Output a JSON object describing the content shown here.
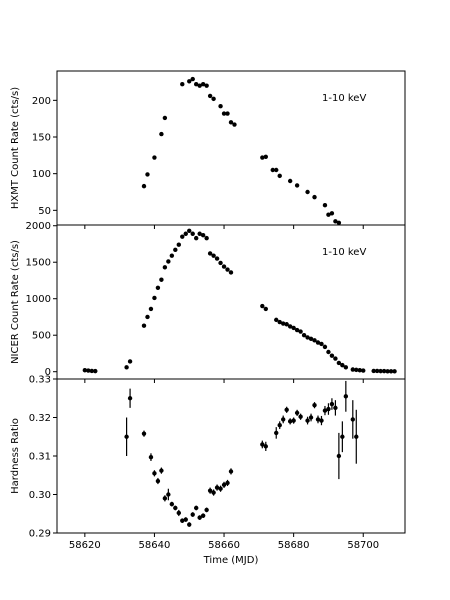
{
  "chart_data": [
    {
      "type": "scatter",
      "panel": "top",
      "ylabel": "HXMT Count Rate (cts/s)",
      "annotation": "1-10 keV",
      "xlim": [
        58612,
        58712
      ],
      "ylim": [
        30,
        240
      ],
      "yticks": [
        50,
        100,
        150,
        200
      ],
      "ytick_labels": [
        "50",
        "100",
        "150",
        "200"
      ],
      "points": [
        {
          "x": 58637.0,
          "y": 83
        },
        {
          "x": 58638.0,
          "y": 99
        },
        {
          "x": 58640.0,
          "y": 122
        },
        {
          "x": 58642.0,
          "y": 154
        },
        {
          "x": 58643.0,
          "y": 176
        },
        {
          "x": 58648.0,
          "y": 222
        },
        {
          "x": 58650.0,
          "y": 226
        },
        {
          "x": 58651.0,
          "y": 229
        },
        {
          "x": 58652.0,
          "y": 222
        },
        {
          "x": 58653.0,
          "y": 220
        },
        {
          "x": 58654.0,
          "y": 222
        },
        {
          "x": 58655.0,
          "y": 220
        },
        {
          "x": 58656.0,
          "y": 206
        },
        {
          "x": 58657.0,
          "y": 202
        },
        {
          "x": 58659.0,
          "y": 192
        },
        {
          "x": 58660.0,
          "y": 182
        },
        {
          "x": 58661.0,
          "y": 182
        },
        {
          "x": 58662.0,
          "y": 170
        },
        {
          "x": 58663.0,
          "y": 167
        },
        {
          "x": 58671.0,
          "y": 122
        },
        {
          "x": 58672.0,
          "y": 123
        },
        {
          "x": 58674.0,
          "y": 105
        },
        {
          "x": 58675.0,
          "y": 105
        },
        {
          "x": 58676.0,
          "y": 97
        },
        {
          "x": 58679.0,
          "y": 90
        },
        {
          "x": 58681.0,
          "y": 84
        },
        {
          "x": 58684.0,
          "y": 75
        },
        {
          "x": 58686.0,
          "y": 68
        },
        {
          "x": 58689.0,
          "y": 57
        },
        {
          "x": 58690.0,
          "y": 44
        },
        {
          "x": 58691.0,
          "y": 46
        },
        {
          "x": 58692.0,
          "y": 35
        },
        {
          "x": 58693.0,
          "y": 33
        }
      ]
    },
    {
      "type": "scatter",
      "panel": "middle",
      "ylabel": "NICER Count Rate (cts/s)",
      "annotation": "1-10 keV",
      "xlim": [
        58612,
        58712
      ],
      "ylim": [
        -100,
        2010
      ],
      "yticks": [
        0,
        500,
        1000,
        1500,
        2000
      ],
      "ytick_labels": [
        "0",
        "500",
        "1000",
        "1500",
        "2000"
      ],
      "points": [
        {
          "x": 58620.0,
          "y": 20
        },
        {
          "x": 58621.0,
          "y": 15
        },
        {
          "x": 58622.0,
          "y": 10
        },
        {
          "x": 58623.0,
          "y": 8
        },
        {
          "x": 58632.0,
          "y": 60
        },
        {
          "x": 58633.0,
          "y": 140
        },
        {
          "x": 58637.0,
          "y": 630
        },
        {
          "x": 58638.0,
          "y": 750
        },
        {
          "x": 58639.0,
          "y": 860
        },
        {
          "x": 58640.0,
          "y": 1010
        },
        {
          "x": 58641.0,
          "y": 1150
        },
        {
          "x": 58642.0,
          "y": 1260
        },
        {
          "x": 58643.0,
          "y": 1430
        },
        {
          "x": 58644.0,
          "y": 1510
        },
        {
          "x": 58645.0,
          "y": 1590
        },
        {
          "x": 58646.0,
          "y": 1670
        },
        {
          "x": 58647.0,
          "y": 1740
        },
        {
          "x": 58648.0,
          "y": 1850
        },
        {
          "x": 58649.0,
          "y": 1890
        },
        {
          "x": 58650.0,
          "y": 1930
        },
        {
          "x": 58651.0,
          "y": 1890
        },
        {
          "x": 58652.0,
          "y": 1830
        },
        {
          "x": 58653.0,
          "y": 1890
        },
        {
          "x": 58654.0,
          "y": 1870
        },
        {
          "x": 58655.0,
          "y": 1830
        },
        {
          "x": 58656.0,
          "y": 1620
        },
        {
          "x": 58657.0,
          "y": 1590
        },
        {
          "x": 58658.0,
          "y": 1550
        },
        {
          "x": 58659.0,
          "y": 1490
        },
        {
          "x": 58660.0,
          "y": 1440
        },
        {
          "x": 58661.0,
          "y": 1400
        },
        {
          "x": 58662.0,
          "y": 1360
        },
        {
          "x": 58671.0,
          "y": 900
        },
        {
          "x": 58672.0,
          "y": 860
        },
        {
          "x": 58675.0,
          "y": 710
        },
        {
          "x": 58676.0,
          "y": 680
        },
        {
          "x": 58677.0,
          "y": 660
        },
        {
          "x": 58678.0,
          "y": 650
        },
        {
          "x": 58679.0,
          "y": 620
        },
        {
          "x": 58680.0,
          "y": 600
        },
        {
          "x": 58681.0,
          "y": 570
        },
        {
          "x": 58682.0,
          "y": 550
        },
        {
          "x": 58683.0,
          "y": 500
        },
        {
          "x": 58684.0,
          "y": 470
        },
        {
          "x": 58685.0,
          "y": 450
        },
        {
          "x": 58686.0,
          "y": 430
        },
        {
          "x": 58687.0,
          "y": 400
        },
        {
          "x": 58688.0,
          "y": 380
        },
        {
          "x": 58689.0,
          "y": 340
        },
        {
          "x": 58690.0,
          "y": 270
        },
        {
          "x": 58691.0,
          "y": 220
        },
        {
          "x": 58692.0,
          "y": 180
        },
        {
          "x": 58693.0,
          "y": 120
        },
        {
          "x": 58694.0,
          "y": 90
        },
        {
          "x": 58695.0,
          "y": 60
        },
        {
          "x": 58697.0,
          "y": 30
        },
        {
          "x": 58698.0,
          "y": 25
        },
        {
          "x": 58699.0,
          "y": 20
        },
        {
          "x": 58700.0,
          "y": 15
        },
        {
          "x": 58703.0,
          "y": 10
        },
        {
          "x": 58704.0,
          "y": 10
        },
        {
          "x": 58705.0,
          "y": 8
        },
        {
          "x": 58706.0,
          "y": 8
        },
        {
          "x": 58707.0,
          "y": 6
        },
        {
          "x": 58708.0,
          "y": 5
        },
        {
          "x": 58709.0,
          "y": 5
        }
      ]
    },
    {
      "type": "scatter",
      "panel": "bottom",
      "ylabel": "Hardness Ratio",
      "xlabel": "Time (MJD)",
      "xlim": [
        58612,
        58712
      ],
      "xticks": [
        58620,
        58640,
        58660,
        58680,
        58700
      ],
      "xtick_labels": [
        "58620",
        "58640",
        "58660",
        "58680",
        "58700"
      ],
      "ylim": [
        0.29,
        0.33
      ],
      "yticks": [
        0.29,
        0.3,
        0.31,
        0.32,
        0.33
      ],
      "ytick_labels": [
        "0.29",
        "0.30",
        "0.31",
        "0.32",
        "0.33"
      ],
      "points": [
        {
          "x": 58632.0,
          "y": 0.315,
          "err": 0.005
        },
        {
          "x": 58633.0,
          "y": 0.325,
          "err": 0.0025
        },
        {
          "x": 58637.0,
          "y": 0.3158,
          "err": 0.0008
        },
        {
          "x": 58639.0,
          "y": 0.3097,
          "err": 0.001
        },
        {
          "x": 58640.0,
          "y": 0.3055,
          "err": 0.0008
        },
        {
          "x": 58641.0,
          "y": 0.3035,
          "err": 0.0008
        },
        {
          "x": 58642.0,
          "y": 0.3062,
          "err": 0.0008
        },
        {
          "x": 58643.0,
          "y": 0.299,
          "err": 0.0008
        },
        {
          "x": 58644.0,
          "y": 0.3,
          "err": 0.0015
        },
        {
          "x": 58645.0,
          "y": 0.2975,
          "err": 0.0006
        },
        {
          "x": 58646.0,
          "y": 0.2965,
          "err": 0.0006
        },
        {
          "x": 58647.0,
          "y": 0.2952,
          "err": 0.0008
        },
        {
          "x": 58648.0,
          "y": 0.2932,
          "err": 0.0006
        },
        {
          "x": 58649.0,
          "y": 0.2935,
          "err": 0.0006
        },
        {
          "x": 58650.0,
          "y": 0.2922,
          "err": 0.0006
        },
        {
          "x": 58651.0,
          "y": 0.2948,
          "err": 0.0006
        },
        {
          "x": 58652.0,
          "y": 0.2965,
          "err": 0.0006
        },
        {
          "x": 58653.0,
          "y": 0.294,
          "err": 0.0006
        },
        {
          "x": 58654.0,
          "y": 0.2945,
          "err": 0.0006
        },
        {
          "x": 58655.0,
          "y": 0.296,
          "err": 0.0006
        },
        {
          "x": 58656.0,
          "y": 0.301,
          "err": 0.0008
        },
        {
          "x": 58657.0,
          "y": 0.3005,
          "err": 0.0008
        },
        {
          "x": 58658.0,
          "y": 0.3018,
          "err": 0.0008
        },
        {
          "x": 58659.0,
          "y": 0.3015,
          "err": 0.0008
        },
        {
          "x": 58660.0,
          "y": 0.3025,
          "err": 0.0008
        },
        {
          "x": 58661.0,
          "y": 0.303,
          "err": 0.0008
        },
        {
          "x": 58662.0,
          "y": 0.306,
          "err": 0.0008
        },
        {
          "x": 58671.0,
          "y": 0.313,
          "err": 0.001
        },
        {
          "x": 58672.0,
          "y": 0.3125,
          "err": 0.0012
        },
        {
          "x": 58675.0,
          "y": 0.316,
          "err": 0.0015
        },
        {
          "x": 58676.0,
          "y": 0.318,
          "err": 0.001
        },
        {
          "x": 58677.0,
          "y": 0.3195,
          "err": 0.001
        },
        {
          "x": 58678.0,
          "y": 0.322,
          "err": 0.0008
        },
        {
          "x": 58679.0,
          "y": 0.319,
          "err": 0.0008
        },
        {
          "x": 58680.0,
          "y": 0.3192,
          "err": 0.0008
        },
        {
          "x": 58681.0,
          "y": 0.3212,
          "err": 0.0008
        },
        {
          "x": 58682.0,
          "y": 0.3202,
          "err": 0.0008
        },
        {
          "x": 58684.0,
          "y": 0.3192,
          "err": 0.001
        },
        {
          "x": 58685.0,
          "y": 0.32,
          "err": 0.001
        },
        {
          "x": 58686.0,
          "y": 0.3232,
          "err": 0.0008
        },
        {
          "x": 58687.0,
          "y": 0.3195,
          "err": 0.001
        },
        {
          "x": 58688.0,
          "y": 0.3192,
          "err": 0.0012
        },
        {
          "x": 58689.0,
          "y": 0.3218,
          "err": 0.0012
        },
        {
          "x": 58690.0,
          "y": 0.3222,
          "err": 0.0015
        },
        {
          "x": 58691.0,
          "y": 0.3235,
          "err": 0.0015
        },
        {
          "x": 58692.0,
          "y": 0.3225,
          "err": 0.002
        },
        {
          "x": 58693.0,
          "y": 0.31,
          "err": 0.006
        },
        {
          "x": 58694.0,
          "y": 0.315,
          "err": 0.004
        },
        {
          "x": 58695.0,
          "y": 0.3255,
          "err": 0.004
        },
        {
          "x": 58697.0,
          "y": 0.3195,
          "err": 0.005
        },
        {
          "x": 58698.0,
          "y": 0.315,
          "err": 0.007
        }
      ]
    }
  ]
}
